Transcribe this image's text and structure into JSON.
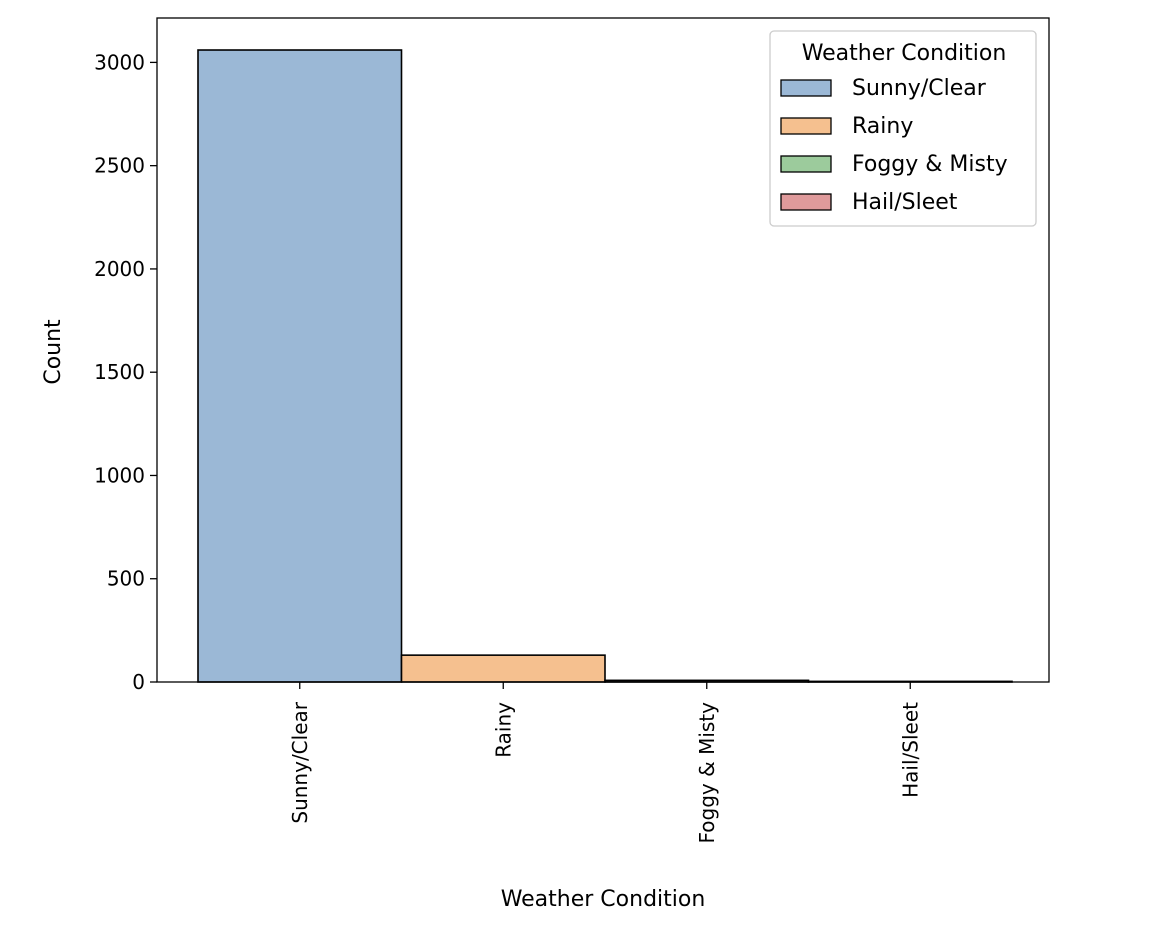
{
  "chart_data": {
    "type": "bar",
    "title": "",
    "xlabel": "Weather Condition",
    "ylabel": "Count",
    "categories": [
      "Sunny/Clear",
      "Rainy",
      "Foggy & Misty",
      "Hail/Sleet"
    ],
    "values": [
      3060,
      130,
      8,
      3
    ],
    "colors": [
      "#9bb8d6",
      "#f5c08f",
      "#9ccb9c",
      "#df9a9b"
    ],
    "ylim": [
      0,
      3215
    ],
    "yticks": [
      0,
      500,
      1000,
      1500,
      2000,
      2500,
      3000
    ],
    "grid": false,
    "legend": {
      "title": "Weather Condition",
      "placement": "top-right",
      "entries": [
        "Sunny/Clear",
        "Rainy",
        "Foggy & Misty",
        "Hail/Sleet"
      ]
    }
  }
}
